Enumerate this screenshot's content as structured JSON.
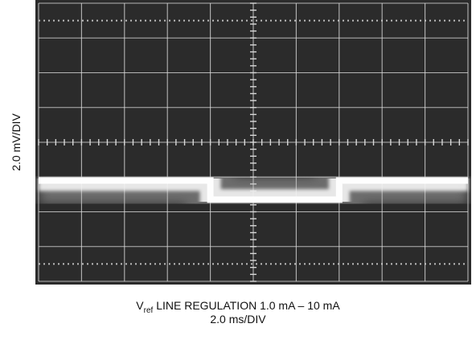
{
  "chart_data": {
    "type": "line",
    "title": "",
    "ylabel": "2.0 mV/DIV",
    "xlabel_prefix": "V",
    "xlabel_sub": "ref",
    "xlabel_rest": " LINE REGULATION 1.0 mA – 10 mA",
    "xscale_label": "2.0 ms/DIV",
    "grid": true,
    "x_divisions": 10,
    "y_divisions": 8,
    "xlim": [
      0,
      10
    ],
    "ylim": [
      0,
      8
    ],
    "series": [
      {
        "x": [
          0,
          4,
          4,
          7,
          7,
          10
        ],
        "y": [
          2.9,
          2.9,
          2.35,
          2.35,
          2.9,
          2.9
        ]
      }
    ],
    "colors": {
      "screen": "#2b2b2b",
      "grid": "#d8d8d8",
      "trace": "#f4f4f4"
    }
  }
}
